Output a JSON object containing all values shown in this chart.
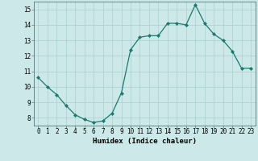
{
  "x": [
    0,
    1,
    2,
    3,
    4,
    5,
    6,
    7,
    8,
    9,
    10,
    11,
    12,
    13,
    14,
    15,
    16,
    17,
    18,
    19,
    20,
    21,
    22,
    23
  ],
  "y": [
    10.6,
    10.0,
    9.5,
    8.8,
    8.2,
    7.9,
    7.7,
    7.8,
    8.3,
    9.6,
    12.4,
    13.2,
    13.3,
    13.3,
    14.1,
    14.1,
    14.0,
    15.3,
    14.1,
    13.4,
    13.0,
    12.3,
    11.2,
    11.2
  ],
  "line_color": "#1a7a6e",
  "marker": "D",
  "marker_size": 2.0,
  "bg_color": "#cce8e8",
  "grid_color": "#aacfcf",
  "xlabel": "Humidex (Indice chaleur)",
  "xlim": [
    -0.5,
    23.5
  ],
  "ylim": [
    7.5,
    15.5
  ],
  "yticks": [
    8,
    9,
    10,
    11,
    12,
    13,
    14,
    15
  ],
  "xticks": [
    0,
    1,
    2,
    3,
    4,
    5,
    6,
    7,
    8,
    9,
    10,
    11,
    12,
    13,
    14,
    15,
    16,
    17,
    18,
    19,
    20,
    21,
    22,
    23
  ],
  "xlabel_fontsize": 6.5,
  "tick_fontsize": 5.5,
  "linewidth": 0.9
}
